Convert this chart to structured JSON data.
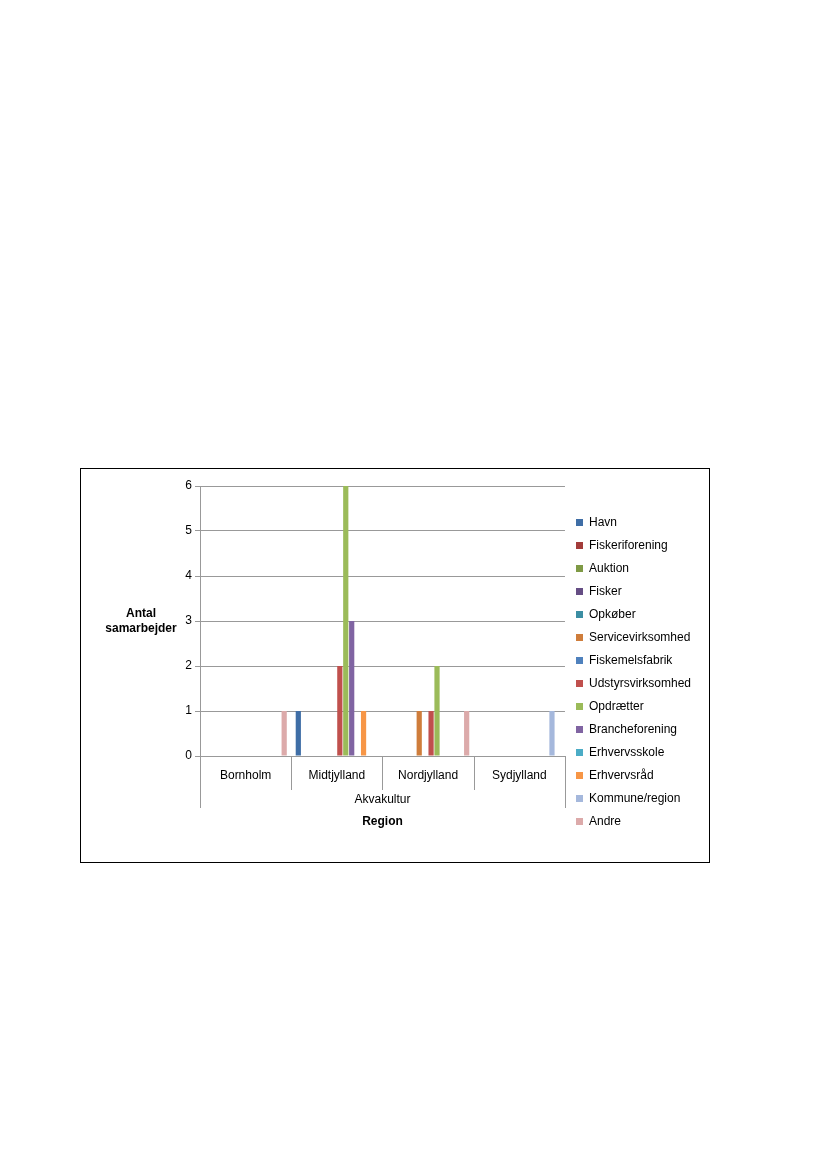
{
  "chart_data": {
    "type": "bar",
    "xlabel": "Region",
    "ylabel": "Antal samarbejder",
    "categories": [
      "Bornholm",
      "Midtjylland",
      "Nordjylland",
      "Sydjylland"
    ],
    "annotations": [
      "Akvakultur"
    ],
    "ylim": [
      0,
      6
    ],
    "yticks": [
      0,
      1,
      2,
      3,
      4,
      5,
      6
    ],
    "grid": "y",
    "legend": "right",
    "series": [
      {
        "name": "Havn",
        "color": "#3f6ea6",
        "values": [
          null,
          1,
          null,
          null
        ]
      },
      {
        "name": "Fiskeriforening",
        "color": "#a33c3a",
        "values": [
          null,
          null,
          null,
          null
        ]
      },
      {
        "name": "Auktion",
        "color": "#7f9a45",
        "values": [
          null,
          null,
          null,
          null
        ]
      },
      {
        "name": "Fisker",
        "color": "#654d84",
        "values": [
          null,
          null,
          null,
          null
        ]
      },
      {
        "name": "Opkøber",
        "color": "#3b8ea3",
        "values": [
          null,
          null,
          null,
          null
        ]
      },
      {
        "name": "Servicevirksomhed",
        "color": "#cf7d3b",
        "values": [
          null,
          null,
          1,
          null
        ]
      },
      {
        "name": "Fiskemelsfabrik",
        "color": "#4f81bd",
        "values": [
          null,
          null,
          null,
          null
        ]
      },
      {
        "name": "Udstyrsvirksomhed",
        "color": "#c0504d",
        "values": [
          null,
          2,
          1,
          null
        ]
      },
      {
        "name": "Opdrætter",
        "color": "#9bbb59",
        "values": [
          null,
          6,
          2,
          null
        ]
      },
      {
        "name": "Brancheforening",
        "color": "#8064a2",
        "values": [
          null,
          3,
          null,
          null
        ]
      },
      {
        "name": "Erhvervsskole",
        "color": "#4bacc6",
        "values": [
          null,
          null,
          null,
          null
        ]
      },
      {
        "name": "Erhvervsråd",
        "color": "#f79646",
        "values": [
          null,
          1,
          null,
          null
        ]
      },
      {
        "name": "Kommune/region",
        "color": "#a5b8dc",
        "values": [
          null,
          null,
          null,
          1
        ]
      },
      {
        "name": "Andre",
        "color": "#dcaaaa",
        "values": [
          1,
          null,
          1,
          null
        ]
      }
    ]
  }
}
